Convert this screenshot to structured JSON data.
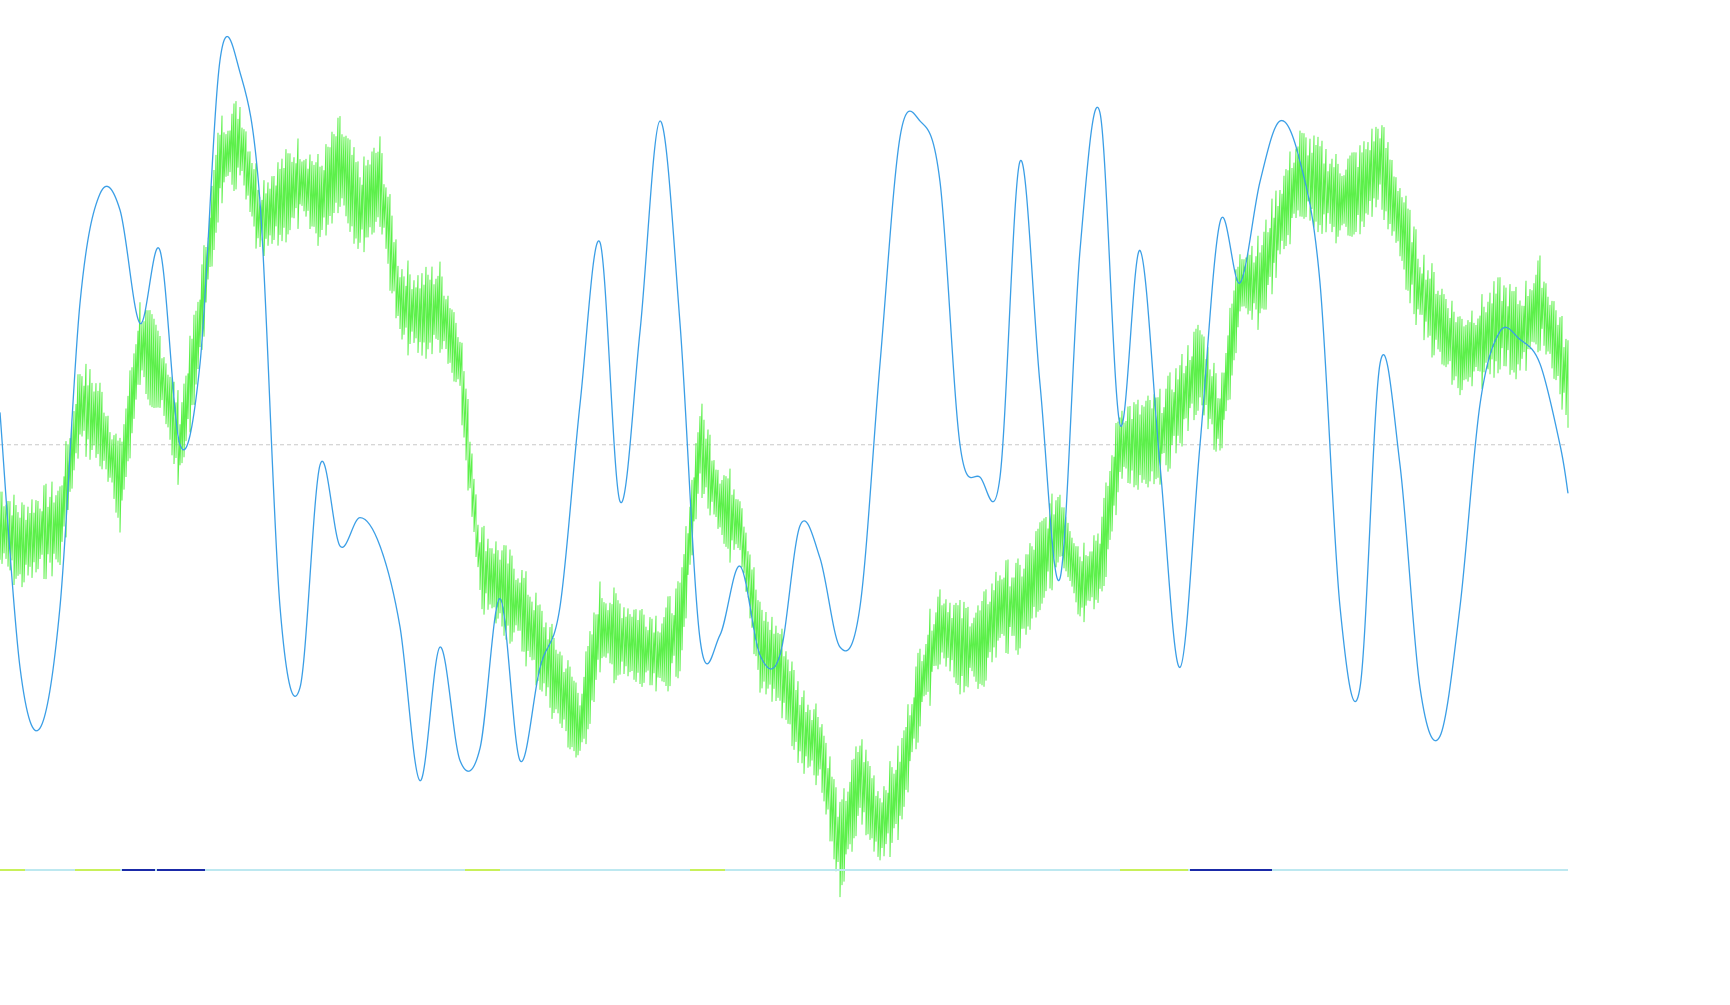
{
  "chart_data": {
    "type": "line",
    "title": "",
    "xlabel": "",
    "ylabel": "",
    "grid": false,
    "legend": "none",
    "x": [
      0,
      20,
      40,
      60,
      80,
      100,
      120,
      140,
      160,
      180,
      200,
      220,
      240,
      260,
      280,
      300,
      320,
      340,
      360,
      380,
      400,
      420,
      440,
      460,
      480,
      500,
      520,
      540,
      560,
      580,
      600,
      620,
      640,
      660,
      680,
      700,
      720,
      740,
      760,
      780,
      800,
      820,
      840,
      860,
      880,
      900,
      920,
      940,
      960,
      980,
      1000,
      1020,
      1040,
      1060,
      1080,
      1100,
      1120,
      1140,
      1160,
      1180,
      1200,
      1220,
      1240,
      1260,
      1280,
      1300,
      1320,
      1340,
      1360,
      1380,
      1400,
      1420,
      1440,
      1460,
      1480,
      1500,
      1520,
      1540,
      1560,
      1568
    ],
    "ylim": [
      -1.1,
      1.0
    ],
    "reference_line": 0,
    "series": [
      {
        "id": "oscillator",
        "color": "#3a9ee6",
        "values": [
          0.08,
          -0.55,
          -0.7,
          -0.4,
          0.35,
          0.62,
          0.58,
          0.3,
          0.48,
          0.0,
          0.2,
          0.95,
          0.92,
          0.6,
          -0.4,
          -0.6,
          -0.05,
          -0.25,
          -0.18,
          -0.25,
          -0.45,
          -0.83,
          -0.5,
          -0.78,
          -0.75,
          -0.38,
          -0.78,
          -0.55,
          -0.4,
          0.1,
          0.5,
          -0.14,
          0.28,
          0.8,
          0.3,
          -0.48,
          -0.47,
          -0.3,
          -0.52,
          -0.52,
          -0.2,
          -0.28,
          -0.5,
          -0.4,
          0.2,
          0.76,
          0.8,
          0.65,
          0.0,
          -0.08,
          -0.08,
          0.7,
          0.15,
          -0.33,
          0.48,
          0.82,
          0.05,
          0.48,
          -0.05,
          -0.55,
          0.0,
          0.55,
          0.4,
          0.65,
          0.8,
          0.7,
          0.4,
          -0.4,
          -0.6,
          0.2,
          -0.05,
          -0.6,
          -0.72,
          -0.4,
          0.1,
          0.28,
          0.26,
          0.2,
          0.0,
          -0.12
        ]
      },
      {
        "id": "price",
        "color": "#5cf04a",
        "values": [
          -0.2,
          -0.25,
          -0.22,
          -0.2,
          0.1,
          0.05,
          -0.1,
          0.25,
          0.18,
          0.0,
          0.3,
          0.7,
          0.75,
          0.55,
          0.6,
          0.65,
          0.6,
          0.7,
          0.58,
          0.65,
          0.35,
          0.32,
          0.34,
          0.2,
          -0.3,
          -0.35,
          -0.4,
          -0.5,
          -0.6,
          -0.7,
          -0.45,
          -0.48,
          -0.5,
          -0.52,
          -0.45,
          0.0,
          -0.15,
          -0.2,
          -0.5,
          -0.55,
          -0.7,
          -0.75,
          -1.0,
          -0.82,
          -0.95,
          -0.85,
          -0.6,
          -0.45,
          -0.5,
          -0.5,
          -0.4,
          -0.4,
          -0.3,
          -0.2,
          -0.35,
          -0.3,
          0.0,
          0.0,
          0.02,
          0.1,
          0.2,
          0.05,
          0.4,
          0.4,
          0.55,
          0.67,
          0.64,
          0.6,
          0.63,
          0.7,
          0.55,
          0.38,
          0.3,
          0.22,
          0.25,
          0.3,
          0.27,
          0.35,
          0.22,
          0.15
        ]
      }
    ],
    "bottom_bar": {
      "colors": [
        "#c8f05a",
        "#3a9ee6",
        "#1a2aa8",
        "#bde8f0"
      ]
    }
  }
}
